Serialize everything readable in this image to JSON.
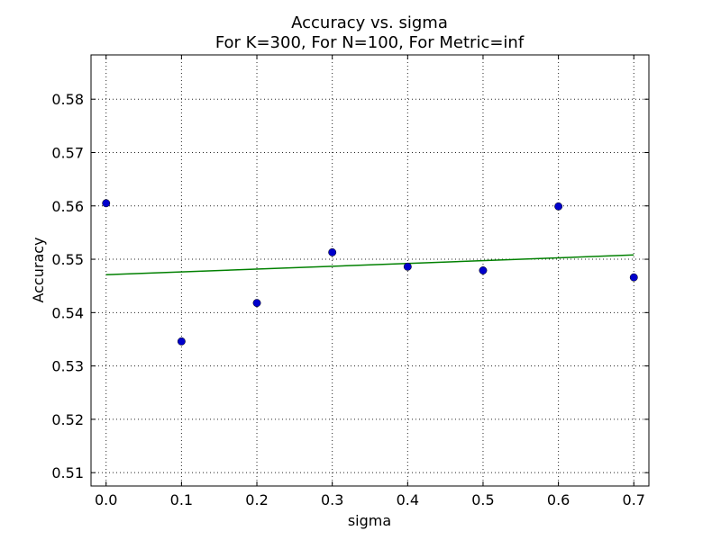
{
  "chart_data": {
    "type": "scatter",
    "title": "Accuracy vs. sigma",
    "subtitle": "For K=300, For N=100, For Metric=inf",
    "xlabel": "sigma",
    "ylabel": "Accuracy",
    "xlim": [
      -0.02,
      0.72
    ],
    "ylim": [
      0.5075,
      0.5883
    ],
    "x_ticks": [
      0.0,
      0.1,
      0.2,
      0.3,
      0.4,
      0.5,
      0.6,
      0.7
    ],
    "x_tick_labels": [
      "0.0",
      "0.1",
      "0.2",
      "0.3",
      "0.4",
      "0.5",
      "0.6",
      "0.7"
    ],
    "y_ticks": [
      0.51,
      0.52,
      0.53,
      0.54,
      0.55,
      0.56,
      0.57,
      0.58
    ],
    "y_tick_labels": [
      "0.51",
      "0.52",
      "0.53",
      "0.54",
      "0.55",
      "0.56",
      "0.57",
      "0.58"
    ],
    "grid": true,
    "series": [
      {
        "kind": "scatter",
        "color": "#0000cc",
        "x": [
          0.0,
          0.1,
          0.2,
          0.3,
          0.4,
          0.5,
          0.6,
          0.7
        ],
        "y": [
          0.5605,
          0.5346,
          0.5418,
          0.5513,
          0.5486,
          0.5479,
          0.5599,
          0.5466
        ]
      },
      {
        "kind": "line",
        "color": "#008000",
        "x": [
          0.0,
          0.7
        ],
        "y": [
          0.5471,
          0.5508
        ]
      }
    ]
  }
}
